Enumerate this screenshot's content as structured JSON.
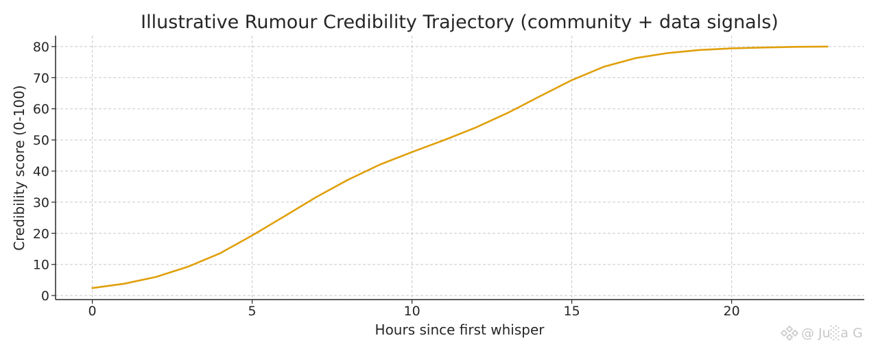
{
  "chart_data": {
    "type": "line",
    "title": "Illustrative Rumour Credibility Trajectory (community + data signals)",
    "xlabel": "Hours since first whisper",
    "ylabel": "Credibility score (0-100)",
    "xlim": [
      -1.15,
      24.15
    ],
    "ylim": [
      -1.3,
      83.5
    ],
    "x_ticks": [
      0,
      5,
      10,
      15,
      20
    ],
    "y_ticks": [
      0,
      10,
      20,
      30,
      40,
      50,
      60,
      70,
      80
    ],
    "grid": true,
    "series": [
      {
        "x": [
          0,
          1,
          2,
          3,
          4,
          5,
          6,
          7,
          8,
          9,
          10,
          11,
          12,
          13,
          14,
          15,
          16,
          17,
          18,
          19,
          20,
          21,
          22,
          23
        ],
        "values": [
          2.4,
          3.8,
          6.0,
          9.3,
          13.6,
          19.3,
          25.4,
          31.6,
          37.2,
          42.1,
          46.1,
          49.9,
          54.0,
          58.7,
          64.0,
          69.2,
          73.5,
          76.3,
          77.9,
          78.9,
          79.4,
          79.7,
          79.9,
          80.0
        ]
      }
    ]
  },
  "colors": {
    "line": "#e09f0a",
    "grid": "#c8c8c8",
    "axis": "#262626",
    "watermark": "#c7c7c7"
  },
  "watermark": {
    "text": "@ Ju░a G",
    "icon": "diamond-logo-icon"
  }
}
